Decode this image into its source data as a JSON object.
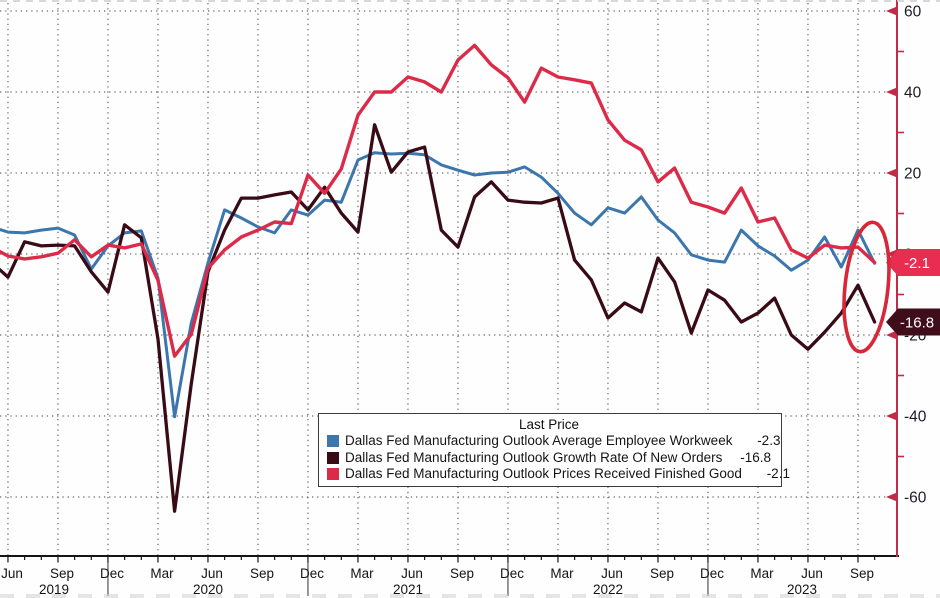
{
  "window": {
    "description": "Bloomberg-style terminal line chart on white background"
  },
  "colors": {
    "background": "#fefefe",
    "grid_dots": "#454545",
    "axis_red": "#c22b45",
    "axis_text": "#1c1c28",
    "x_text": "#141414",
    "series_workweek": "#3b76ad",
    "series_orders": "#380b16",
    "series_prices": "#dc2b49",
    "badge_prices_bg": "#e82d50",
    "badge_orders_bg": "#400e1b",
    "badge_text": "#ffffff",
    "annotation_ellipse": "#d62839",
    "x_axis_line": "#151515"
  },
  "legend": {
    "title": "Last Price",
    "entries": [
      {
        "name": "Dallas Fed Manufacturing Outlook Average Employee Workweek",
        "value": "-2.3",
        "color_key": "series_workweek"
      },
      {
        "name": "Dallas Fed Manufacturing Outlook Growth Rate Of New Orders",
        "value": "-16.8",
        "color_key": "series_orders"
      },
      {
        "name": "Dallas Fed Manufacturing Outlook Prices Received Finished Good",
        "value": "-2.1",
        "color_key": "series_prices"
      }
    ]
  },
  "badges": [
    {
      "text": "-2.1",
      "value": -2.1,
      "color_key": "badge_prices_bg"
    },
    {
      "text": "-16.8",
      "value": -16.8,
      "color_key": "badge_orders_bg"
    }
  ],
  "y_axis": {
    "major_values": [
      60,
      40,
      20,
      0,
      -20,
      -40,
      -60
    ],
    "major_labels": [
      "60",
      "40",
      "20",
      "0",
      "-20",
      "-40",
      "-60"
    ],
    "minor_values": [
      50,
      30,
      10,
      -10,
      -30,
      -50
    ]
  },
  "x_axis": {
    "quarter_labels": [
      "Jun",
      "Sep",
      "Dec",
      "Mar",
      "Jun",
      "Sep",
      "Dec",
      "Mar",
      "Jun",
      "Sep",
      "Dec",
      "Mar",
      "Jun",
      "Sep",
      "Dec",
      "Mar",
      "Jun",
      "Sep"
    ],
    "year_labels": [
      "2019",
      "2020",
      "2021",
      "2022",
      "2023"
    ]
  },
  "chart_data": {
    "type": "line",
    "title": "Last Price",
    "x_monthly_start": "2019-05",
    "x_monthly_end": "2023-10",
    "x_tick_labels": [
      "Jun 2019",
      "Sep 2019",
      "Dec 2019",
      "Mar 2020",
      "Jun 2020",
      "Sep 2020",
      "Dec 2020",
      "Mar 2021",
      "Jun 2021",
      "Sep 2021",
      "Dec 2021",
      "Mar 2022",
      "Jun 2022",
      "Sep 2022",
      "Dec 2022",
      "Mar 2023",
      "Jun 2023",
      "Sep 2023"
    ],
    "ylim": [
      -74,
      61
    ],
    "y_ticks": [
      -60,
      -40,
      -20,
      0,
      20,
      40,
      60
    ],
    "grid": "dotted",
    "legend_position": "bottom-center-box",
    "annotation": {
      "type": "ellipse",
      "purpose": "highlight latest values of all three series"
    },
    "series": [
      {
        "name": "Dallas Fed Manufacturing Outlook Average Employee Workweek",
        "color_key": "series_workweek",
        "last_price": -2.3,
        "values": [
          6.7,
          5.4,
          5.2,
          5.9,
          6.4,
          4.7,
          -3.7,
          2.0,
          5.2,
          5.7,
          -6.0,
          -40.2,
          -17.0,
          -2.2,
          10.9,
          8.9,
          6.7,
          5.2,
          10.9,
          9.6,
          13.3,
          12.8,
          23.2,
          25.0,
          24.7,
          24.9,
          24.5,
          22.0,
          20.7,
          19.5,
          20.0,
          20.2,
          21.5,
          19.0,
          15.0,
          10.1,
          7.2,
          11.4,
          10.1,
          14.1,
          8.4,
          5.2,
          -0.2,
          -1.5,
          -2.0,
          5.9,
          2.0,
          -0.5,
          -4.0,
          -1.5,
          4.2,
          -3.2,
          5.9,
          -2.3
        ]
      },
      {
        "name": "Dallas Fed Manufacturing Outlook Growth Rate Of New Orders",
        "color_key": "series_orders",
        "last_price": -16.8,
        "values": [
          -2.0,
          -5.7,
          3.0,
          2.0,
          2.2,
          2.0,
          -4.4,
          -9.4,
          7.2,
          4.0,
          -21.0,
          -63.5,
          -32.0,
          -4.4,
          5.9,
          13.8,
          13.8,
          14.6,
          15.3,
          10.9,
          16.5,
          10.1,
          5.4,
          31.9,
          20.2,
          25.2,
          26.4,
          5.9,
          1.7,
          14.1,
          17.8,
          13.3,
          12.8,
          12.6,
          13.8,
          -1.5,
          -6.4,
          -15.8,
          -12.1,
          -14.3,
          -1.0,
          -6.9,
          -19.5,
          -8.9,
          -11.4,
          -16.8,
          -14.6,
          -10.9,
          -20.0,
          -23.5,
          -19.3,
          -14.6,
          -7.7,
          -16.8
        ]
      },
      {
        "name": "Dallas Fed Manufacturing Outlook Prices Received Finished Good",
        "color_key": "series_prices",
        "last_price": -2.1,
        "values": [
          1.7,
          -0.5,
          -1.2,
          -0.7,
          0.2,
          3.5,
          -0.7,
          2.2,
          1.5,
          2.5,
          -6.5,
          -25.2,
          -19.8,
          -3.5,
          1.0,
          4.2,
          5.9,
          7.9,
          7.5,
          19.5,
          15.0,
          21.0,
          34.3,
          40.0,
          40.0,
          43.7,
          42.5,
          40.0,
          47.9,
          51.5,
          46.7,
          43.5,
          37.5,
          45.9,
          43.7,
          43.0,
          42.2,
          33.1,
          28.1,
          25.7,
          17.8,
          21.2,
          12.8,
          11.6,
          10.1,
          16.3,
          7.9,
          8.9,
          1.0,
          -1.0,
          2.2,
          1.5,
          1.7,
          -2.1
        ]
      }
    ]
  }
}
